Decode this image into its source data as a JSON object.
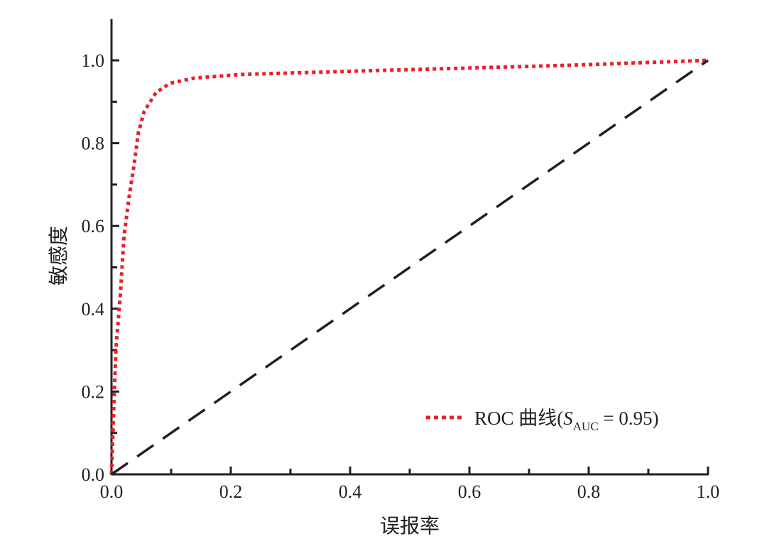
{
  "chart_data": {
    "type": "line",
    "title": "",
    "xlabel": "误报率",
    "ylabel": "敏感度",
    "xlim": [
      0,
      1.0
    ],
    "ylim": [
      0,
      1.1
    ],
    "xticks": [
      "0.0",
      "0.2",
      "0.4",
      "0.6",
      "0.8",
      "1.0"
    ],
    "yticks": [
      "0.0",
      "0.2",
      "0.4",
      "0.6",
      "0.8",
      "1.0"
    ],
    "grid": false,
    "legend_position": "bottom-right",
    "series": [
      {
        "name": "ROC  曲线",
        "legend_label": {
          "main": "ROC  曲线(",
          "s": "S",
          "sub": "AUC",
          "tail": " = 0.95)"
        },
        "style": "dotted",
        "color": "#e8202a",
        "x": [
          0,
          0.004,
          0.0075,
          0.015,
          0.021,
          0.029,
          0.037,
          0.045,
          0.055,
          0.075,
          0.099,
          0.138,
          0.218,
          0.408,
          0.765,
          1.0
        ],
        "y": [
          0,
          0.168,
          0.305,
          0.437,
          0.575,
          0.665,
          0.739,
          0.825,
          0.877,
          0.923,
          0.945,
          0.957,
          0.966,
          0.974,
          0.988,
          1.0
        ]
      },
      {
        "style": "dashed",
        "color": "#231f20",
        "x": [
          0,
          1.0
        ],
        "y": [
          0,
          1.0
        ]
      }
    ]
  }
}
